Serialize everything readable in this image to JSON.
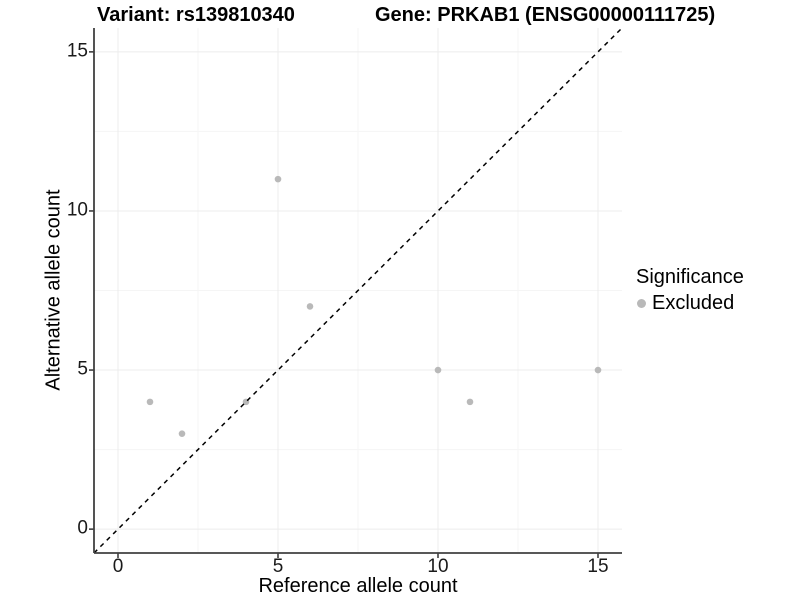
{
  "titles": {
    "variant": "Variant: rs139810340",
    "gene": "Gene: PRKAB1 (ENSG00000111725)"
  },
  "chart_data": {
    "type": "scatter",
    "title_left": "Variant: rs139810340",
    "title_right": "Gene: PRKAB1 (ENSG00000111725)",
    "xlabel": "Reference allele count",
    "ylabel": "Alternative allele count",
    "xlim": [
      -0.75,
      15.75
    ],
    "ylim": [
      -0.75,
      15.75
    ],
    "x_ticks": [
      0,
      5,
      10,
      15
    ],
    "y_ticks": [
      0,
      5,
      10,
      15
    ],
    "x_minor_ticks": [
      2.5,
      7.5,
      12.5
    ],
    "y_minor_ticks": [
      2.5,
      7.5,
      12.5
    ],
    "grid": true,
    "series": [
      {
        "name": "Excluded",
        "color": "#b9b9b9",
        "points": [
          [
            1,
            4
          ],
          [
            2,
            3
          ],
          [
            4,
            4
          ],
          [
            5,
            11
          ],
          [
            6,
            7
          ],
          [
            10,
            5
          ],
          [
            11,
            4
          ],
          [
            15,
            5
          ]
        ]
      }
    ],
    "abline": {
      "slope": 1,
      "intercept": 0,
      "linetype": "dashed",
      "color": "#000000"
    },
    "legend": {
      "position": "right",
      "title": "Significance",
      "entries": [
        {
          "label": "Excluded",
          "color": "#b9b9b9"
        }
      ]
    }
  },
  "colors": {
    "background": "#ffffff",
    "grid_major": "#ececec",
    "grid_minor": "#f5f5f5",
    "axis": "#404040",
    "tick_text": "#1a1a1a",
    "point": "#b9b9b9",
    "identity_line": "#000000"
  }
}
